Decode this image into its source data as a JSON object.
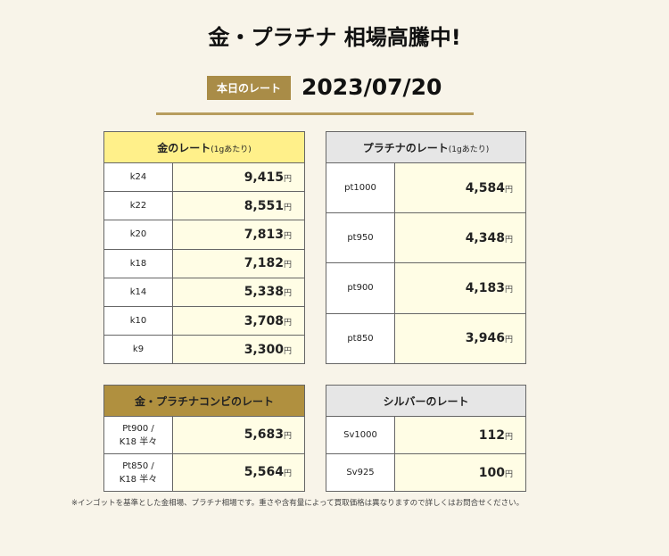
{
  "title": "金・プラチナ 相場高騰中!",
  "badge": "本日のレート",
  "date": "2023/07/20",
  "unit": "円",
  "gold": {
    "header": "金のレート",
    "sub": "(1gあたり)",
    "rows": [
      {
        "label": "k24",
        "value": "9,415"
      },
      {
        "label": "k22",
        "value": "8,551"
      },
      {
        "label": "k20",
        "value": "7,813"
      },
      {
        "label": "k18",
        "value": "7,182"
      },
      {
        "label": "k14",
        "value": "5,338"
      },
      {
        "label": "k10",
        "value": "3,708"
      },
      {
        "label": "k9",
        "value": "3,300"
      }
    ]
  },
  "platinum": {
    "header": "プラチナのレート",
    "sub": "(1gあたり)",
    "rows": [
      {
        "label": "pt1000",
        "value": "4,584"
      },
      {
        "label": "pt950",
        "value": "4,348"
      },
      {
        "label": "pt900",
        "value": "4,183"
      },
      {
        "label": "pt850",
        "value": "3,946"
      }
    ]
  },
  "combo": {
    "header": "金・プラチナコンビのレート",
    "rows": [
      {
        "label1": "Pt900 /",
        "label2": "K18 半々",
        "value": "5,683"
      },
      {
        "label1": "Pt850 /",
        "label2": "K18 半々",
        "value": "5,564"
      }
    ]
  },
  "silver": {
    "header": "シルバーのレート",
    "rows": [
      {
        "label": "Sv1000",
        "value": "112"
      },
      {
        "label": "Sv925",
        "value": "100"
      }
    ]
  },
  "note": "※インゴットを基準とした金相場、プラチナ相場です。重さや含有量によって買取価格は異なりますので詳しくはお問合せください。"
}
